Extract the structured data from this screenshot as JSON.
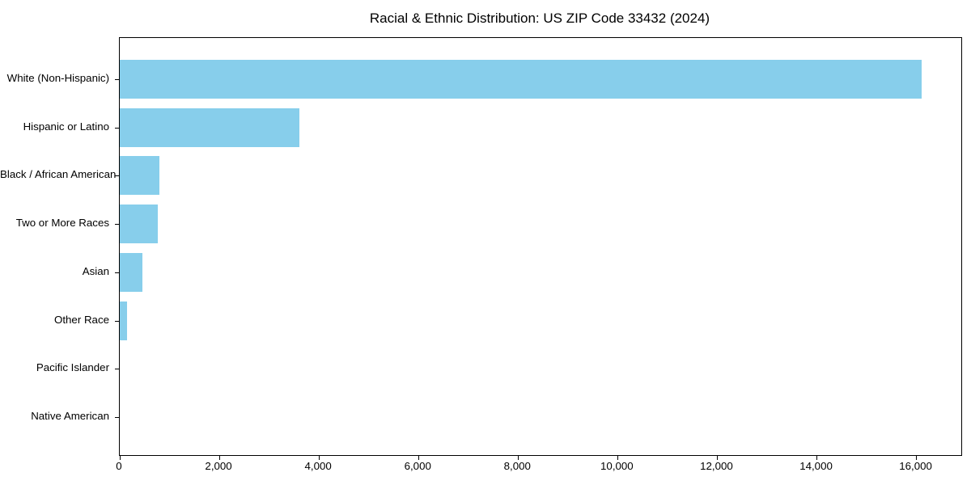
{
  "title": "Racial & Ethnic Distribution: US ZIP Code 33432 (2024)",
  "colors": {
    "bar": "#87CEEB",
    "axis": "#000000",
    "text": "#000000",
    "background": "#FFFFFF"
  },
  "chart_data": {
    "type": "bar",
    "orientation": "horizontal",
    "title": "Racial & Ethnic Distribution: US ZIP Code 33432 (2024)",
    "categories": [
      "White (Non-Hispanic)",
      "Hispanic or Latino",
      "Black / African American",
      "Two or More Races",
      "Asian",
      "Other Race",
      "Pacific Islander",
      "Native American"
    ],
    "values": [
      16100,
      3600,
      800,
      770,
      450,
      140,
      0,
      0
    ],
    "xlabel": "",
    "ylabel": "",
    "xlim": [
      0,
      16900
    ],
    "x_ticks": [
      0,
      2000,
      4000,
      6000,
      8000,
      10000,
      12000,
      14000,
      16000
    ],
    "x_tick_labels": [
      "0",
      "2,000",
      "4,000",
      "6,000",
      "8,000",
      "10,000",
      "12,000",
      "14,000",
      "16,000"
    ],
    "grid": false,
    "legend": null,
    "bar_color": "#87CEEB"
  }
}
